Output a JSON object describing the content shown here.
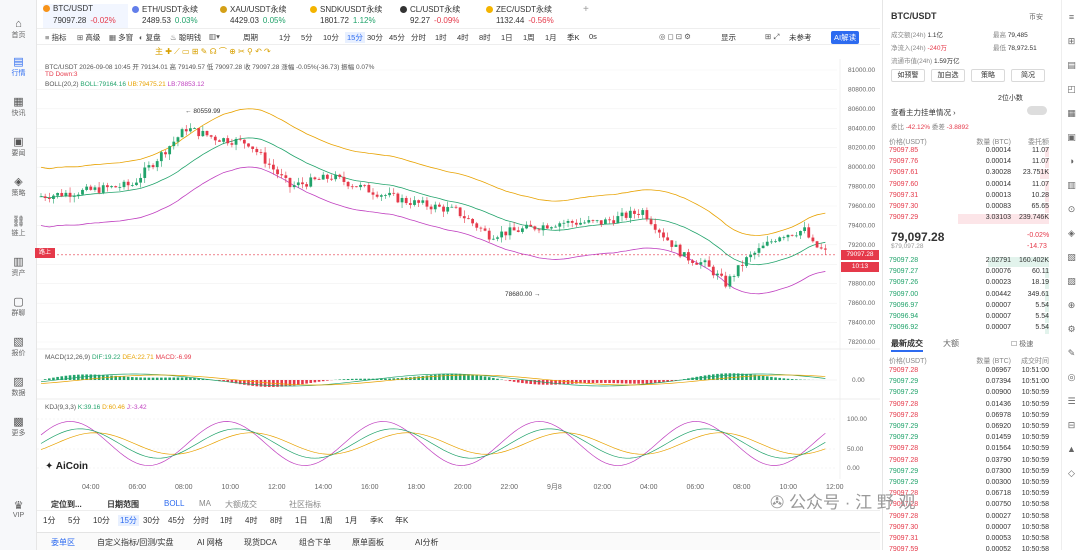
{
  "nav": [
    {
      "label": "首页",
      "icon": "home-icon",
      "active": false
    },
    {
      "label": "行情",
      "icon": "chart-icon",
      "active": true
    },
    {
      "label": "快讯",
      "icon": "news-icon",
      "active": false
    },
    {
      "label": "要闻",
      "icon": "article-icon",
      "active": false
    },
    {
      "label": "策略",
      "icon": "strategy-icon",
      "active": false
    },
    {
      "label": "链上",
      "icon": "chain-icon",
      "active": false
    },
    {
      "label": "资产",
      "icon": "wallet-icon",
      "active": false
    },
    {
      "label": "群聊",
      "icon": "chat-icon",
      "active": false
    },
    {
      "label": "报价",
      "icon": "quote-icon",
      "active": false
    },
    {
      "label": "数据",
      "icon": "data-icon",
      "active": false
    },
    {
      "label": "更多",
      "icon": "more-icon",
      "active": false
    },
    {
      "label": "VIP",
      "icon": "vip-icon",
      "active": false
    }
  ],
  "tabs": [
    {
      "name": "BTC/USDT",
      "price": "79097.28",
      "change": "-0.02%",
      "dir": "dn",
      "color": "#f7931a"
    },
    {
      "name": "ETH/USDT永续",
      "price": "2489.53",
      "change": "0.03%",
      "dir": "up",
      "color": "#627eea"
    },
    {
      "name": "XAU/USDT永续",
      "price": "4429.03",
      "change": "0.05%",
      "dir": "up",
      "color": "#d4a017"
    },
    {
      "name": "SNDK/USDT永续",
      "price": "1801.72",
      "change": "1.12%",
      "dir": "up",
      "color": "#f4b400"
    },
    {
      "name": "CL/USDT永续",
      "price": "92.27",
      "change": "-0.09%",
      "dir": "dn",
      "color": "#333333"
    },
    {
      "name": "ZEC/USDT永续",
      "price": "1132.44",
      "change": "-0.56%",
      "dir": "dn",
      "color": "#f4b400"
    }
  ],
  "tab_add": "+",
  "toolbar1": {
    "items": [
      "指标",
      "高级",
      "多窗",
      "复盘",
      "聪明钱"
    ],
    "period": "周期",
    "intervals": [
      "1分",
      "5分",
      "10分",
      "15分",
      "30分",
      "45分",
      "分时",
      "1时",
      "4时",
      "8时",
      "1日",
      "1周",
      "1月",
      "季K",
      "0s"
    ],
    "active_interval": "15分",
    "display": "显示",
    "unconfirmed": "未参考",
    "ai": "AI解读"
  },
  "chart": {
    "info": "BTC/USDT  2026-09-08 10:45  开 79134.01  高 79149.57  低 79097.28  收 79097.28  涨幅 -0.05%(-36.73)  振幅 0.07%",
    "td": "TD  Down:3",
    "boll": {
      "label": "BOLL(20,2)",
      "boll": "BOLL:79164.16",
      "ub": "UB:79475.21",
      "lb": "LB:78853.12"
    },
    "hi_label": "80559.99",
    "lo_label": "78680.00",
    "last_price": "79097.28",
    "countdown": "10:13",
    "tag_top": "路上",
    "macd": {
      "label": "MACD(12,26,9)",
      "dif": "DIF:19.22",
      "dea": "DEA:22.71",
      "macd": "MACD:-6.99"
    },
    "kdj": {
      "label": "KDJ(9,3,3)",
      "k": "K:39.16",
      "d": "D:60.46",
      "j": "J:-3.42"
    },
    "watermark": "AiCoin"
  },
  "chart_data": {
    "type": "candlestick",
    "y_ticks": [
      "81000.00",
      "80800.00",
      "80600.00",
      "80400.00",
      "80200.00",
      "80000.00",
      "79800.00",
      "79600.00",
      "79400.00",
      "79200.00",
      "79000.00",
      "78800.00",
      "78600.00",
      "78400.00",
      "78200.00"
    ],
    "x_ticks": [
      "04:00",
      "06:00",
      "08:00",
      "10:00",
      "12:00",
      "14:00",
      "16:00",
      "18:00",
      "20:00",
      "22:00",
      "9月8",
      "02:00",
      "04:00",
      "06:00",
      "08:00",
      "10:00",
      "12:00"
    ],
    "macd_ticks": [
      "0.00"
    ],
    "kdj_ticks": [
      "100.00",
      "50.00",
      "0.00"
    ]
  },
  "bottom": {
    "locate": "定位到...",
    "range": "日期范围",
    "ind": [
      "BOLL",
      "MA",
      "大额成交",
      "社区指标"
    ],
    "intervals": [
      "1分",
      "5分",
      "10分",
      "15分",
      "30分",
      "45分",
      "分时",
      "1时",
      "4时",
      "8时",
      "1日",
      "1周",
      "1月",
      "季K",
      "年K"
    ],
    "active": "15分"
  },
  "footer": [
    "委单区",
    "自定义指标/回测/实盘",
    "AI 网格",
    "现货DCA",
    "组合下单",
    "原单面板",
    "AI分析"
  ],
  "right": {
    "symbol": "BTC/USDT",
    "btn_top": "币安",
    "vol_label": "成交额(24h)",
    "vol": "1.1亿",
    "high_label": "最高",
    "high": "79,485",
    "net_label": "净流入(24h)",
    "net": "-240万",
    "low_label": "最低",
    "low": "78,972.51",
    "cap_label": "流通市值(24h)",
    "cap": "1.59万亿",
    "buttons": [
      "如预警",
      "加自选",
      "策略",
      "简况"
    ],
    "precision": "2位小数",
    "ob_title": "查看主力挂单情况",
    "ob_ratio_l": "委比",
    "ob_ratio": "-42.12%",
    "ob_diff_l": "委差",
    "ob_diff": "-3.8892",
    "col_price": "价格(USDT)",
    "col_qty": "数量 (BTC)",
    "col_total": "委托额",
    "asks": [
      [
        "79097.85",
        "0.00014",
        "11.07"
      ],
      [
        "79097.76",
        "0.00014",
        "11.07"
      ],
      [
        "79097.61",
        "0.30028",
        "23.751K"
      ],
      [
        "79097.60",
        "0.00014",
        "11.07"
      ],
      [
        "79097.31",
        "0.00013",
        "10.28"
      ],
      [
        "79097.30",
        "0.00083",
        "65.65"
      ],
      [
        "79097.29",
        "3.03103",
        "239.746K"
      ]
    ],
    "mid_price": "79,097.28",
    "mid_sub": "$79,097.28",
    "mid_chg": "-0.02%",
    "mid_diff": "-14.73",
    "bids": [
      [
        "79097.28",
        "2.02791",
        "160.402K"
      ],
      [
        "79097.27",
        "0.00076",
        "60.11"
      ],
      [
        "79097.26",
        "0.00023",
        "18.19"
      ],
      [
        "79097.00",
        "0.00442",
        "349.61"
      ],
      [
        "79096.97",
        "0.00007",
        "5.54"
      ],
      [
        "79096.94",
        "0.00007",
        "5.54"
      ],
      [
        "79096.92",
        "0.00007",
        "5.54"
      ]
    ],
    "trades_tab": "最新成交",
    "trades_tab2": "大额",
    "filter": "极速",
    "col_time": "成交时间",
    "trades": [
      [
        "79097.28",
        "0.06967",
        "10:51:00",
        "dn"
      ],
      [
        "79097.29",
        "0.07394",
        "10:51:00",
        "up"
      ],
      [
        "79097.29",
        "0.00900",
        "10:50:59",
        "up"
      ],
      [
        "79097.28",
        "0.01436",
        "10:50:59",
        "dn"
      ],
      [
        "79097.28",
        "0.06978",
        "10:50:59",
        "dn"
      ],
      [
        "79097.29",
        "0.06920",
        "10:50:59",
        "up"
      ],
      [
        "79097.29",
        "0.01459",
        "10:50:59",
        "up"
      ],
      [
        "79097.28",
        "0.01564",
        "10:50:59",
        "dn"
      ],
      [
        "79097.28",
        "0.03790",
        "10:50:59",
        "dn"
      ],
      [
        "79097.29",
        "0.07300",
        "10:50:59",
        "up"
      ],
      [
        "79097.29",
        "0.00300",
        "10:50:59",
        "up"
      ],
      [
        "79097.28",
        "0.06718",
        "10:50:59",
        "dn"
      ],
      [
        "79097.28",
        "0.00750",
        "10:50:58",
        "dn"
      ],
      [
        "79097.28",
        "0.00027",
        "10:50:58",
        "dn"
      ],
      [
        "79097.30",
        "0.00007",
        "10:50:58",
        "dn"
      ],
      [
        "79097.31",
        "0.00053",
        "10:50:58",
        "dn"
      ],
      [
        "79097.59",
        "0.00052",
        "10:50:58",
        "dn"
      ]
    ]
  },
  "watermark2": "公众号 · 江 野 观"
}
